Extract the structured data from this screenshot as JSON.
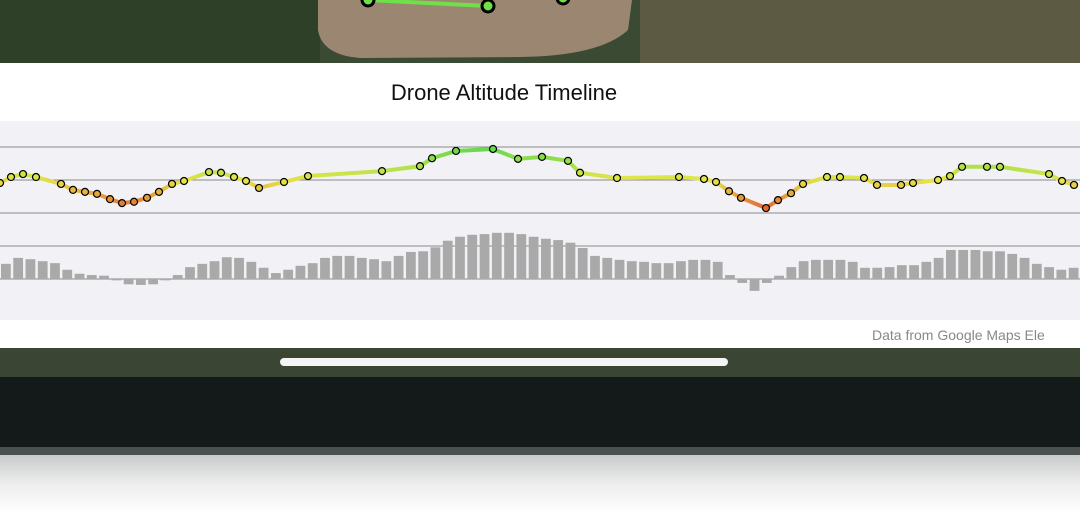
{
  "title": "Drone Altitude Timeline",
  "footer": "Data from Google Maps Ele",
  "chart_data": [
    {
      "type": "line",
      "x": [
        0,
        11,
        23,
        36,
        61,
        73,
        85,
        97,
        110,
        122,
        134,
        147,
        159,
        172,
        184,
        209,
        221,
        234,
        246,
        259,
        284,
        308,
        382,
        420,
        432,
        456,
        493,
        518,
        542,
        568,
        580,
        617,
        679,
        704,
        716,
        729,
        741,
        766,
        778,
        791,
        803,
        827,
        840,
        864,
        877,
        901,
        913,
        938,
        950,
        962,
        987,
        1000,
        1049,
        1062,
        1074
      ],
      "values": [
        45.5,
        54.5,
        59,
        54.5,
        44,
        35,
        32,
        29,
        21,
        15,
        17,
        23,
        32,
        44,
        48.5,
        62,
        61,
        54.5,
        48.5,
        38,
        47,
        56,
        63.5,
        71,
        83,
        94,
        97,
        82,
        85,
        79,
        61,
        53,
        54.5,
        51.5,
        47,
        33,
        23,
        7.5,
        19.5,
        30,
        44,
        54.5,
        54.5,
        53,
        42.5,
        42.5,
        45.5,
        50,
        56,
        70,
        70,
        70,
        59,
        48.5,
        42.5
      ],
      "xlim": [
        0,
        1080
      ],
      "ylim": [
        0,
        100
      ],
      "yticks": [
        0,
        50,
        100
      ],
      "grid": true,
      "colors": {
        "high": "#5ed94c",
        "mid": "#e6e64a",
        "low": "#e2532f"
      }
    },
    {
      "type": "bar",
      "values": [
        23,
        32,
        30,
        27,
        24,
        14,
        8,
        6,
        5,
        -2,
        -8,
        -9,
        -8,
        -2,
        6,
        18,
        23,
        27,
        33,
        32,
        26,
        17,
        9,
        14,
        20,
        24,
        32,
        35,
        35,
        32,
        30,
        27,
        35,
        41,
        42,
        48,
        58,
        64,
        67,
        68,
        70,
        70,
        68,
        64,
        61,
        59,
        55,
        47,
        35,
        32,
        29,
        27,
        26,
        24,
        24,
        27,
        29,
        29,
        26,
        6,
        -6,
        -18,
        -6,
        5,
        18,
        27,
        29,
        29,
        29,
        26,
        17,
        17,
        18,
        21,
        21,
        26,
        32,
        44,
        44,
        44,
        42,
        42,
        38,
        32,
        23,
        18,
        14,
        17
      ],
      "ylim": [
        -25,
        75
      ],
      "yticks": [
        0,
        50
      ],
      "grid": true,
      "color": "#a9a9a9"
    }
  ]
}
